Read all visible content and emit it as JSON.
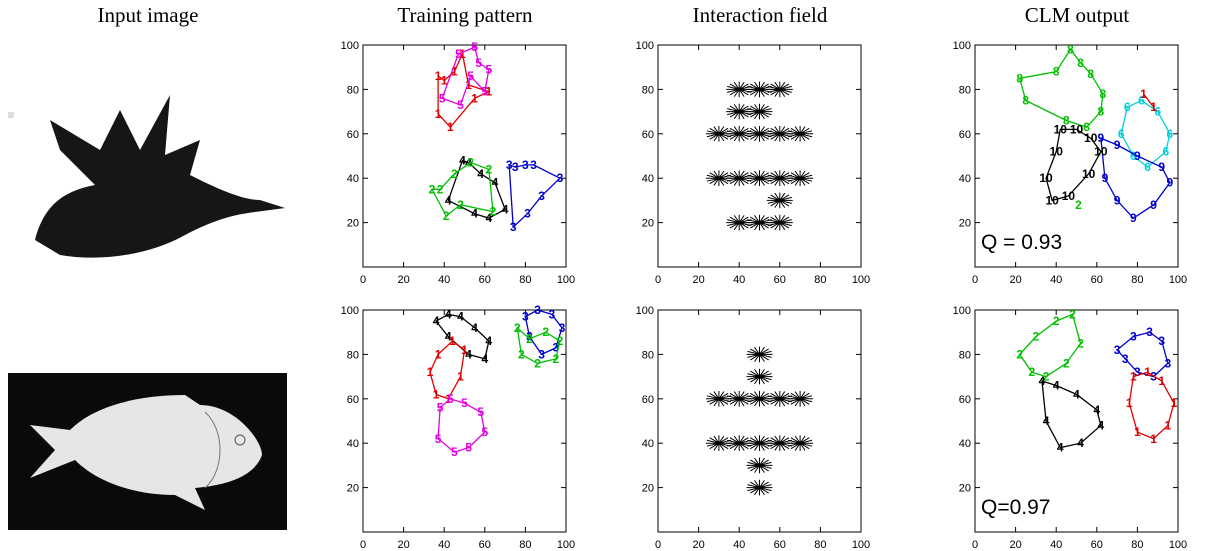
{
  "column_titles": [
    "Input image",
    "Training pattern",
    "Interaction field",
    "CLM output"
  ],
  "chart_data": [
    {
      "type": "label-scatter",
      "xlim": [
        0,
        100
      ],
      "ylim": [
        0,
        100
      ],
      "xticks": [
        0,
        20,
        40,
        60,
        80,
        100
      ],
      "yticks": [
        20,
        40,
        60,
        80,
        100
      ],
      "series": [
        {
          "name": "1",
          "color": "#e00000",
          "x": [
            37,
            40,
            45,
            49,
            52,
            62,
            55,
            43,
            37
          ],
          "y": [
            86,
            84,
            88,
            96,
            82,
            79,
            76,
            63,
            69
          ]
        },
        {
          "name": "5",
          "color": "#e000e0",
          "x": [
            47,
            55,
            57,
            62,
            60,
            53,
            48,
            39
          ],
          "y": [
            96,
            99,
            92,
            89,
            79,
            86,
            73,
            76
          ]
        },
        {
          "name": "4",
          "color": "#000000",
          "x": [
            49,
            52,
            58,
            65,
            70,
            62,
            55,
            42
          ],
          "y": [
            48,
            47,
            42,
            38,
            26,
            22,
            24,
            30
          ]
        },
        {
          "name": "2",
          "color": "#00c000",
          "x": [
            34,
            38,
            45,
            53,
            62,
            64,
            48,
            41
          ],
          "y": [
            35,
            35,
            42,
            47,
            44,
            25,
            28,
            23
          ]
        },
        {
          "name": "3",
          "color": "#0000d0",
          "x": [
            72,
            75,
            80,
            84,
            97,
            88,
            81,
            74
          ],
          "y": [
            46,
            45,
            46,
            46,
            40,
            32,
            24,
            18
          ]
        }
      ]
    },
    {
      "type": "field",
      "xlim": [
        0,
        100
      ],
      "ylim": [
        0,
        100
      ],
      "xticks": [
        0,
        20,
        40,
        60,
        80,
        100
      ],
      "yticks": [
        20,
        40,
        60,
        80,
        100
      ],
      "x": [
        40,
        50,
        60,
        30,
        70,
        40,
        50,
        60,
        30,
        70,
        40,
        50,
        60,
        40,
        50,
        60,
        40,
        50,
        60
      ],
      "y": [
        60,
        60,
        60,
        60,
        60,
        40,
        40,
        40,
        40,
        40,
        80,
        80,
        80,
        20,
        20,
        20,
        70,
        70,
        30
      ]
    },
    {
      "type": "label-scatter",
      "xlim": [
        0,
        100
      ],
      "ylim": [
        0,
        100
      ],
      "xticks": [
        0,
        20,
        40,
        60,
        80,
        100
      ],
      "yticks": [
        20,
        40,
        60,
        80,
        100
      ],
      "annotation": "Q = 0.93",
      "series": [
        {
          "name": "8",
          "color": "#00c000",
          "x": [
            47,
            52,
            57,
            63,
            62,
            55,
            45,
            25,
            22,
            40
          ],
          "y": [
            98,
            92,
            87,
            78,
            70,
            63,
            66,
            75,
            85,
            88
          ]
        },
        {
          "name": "6",
          "color": "#00d0e0",
          "x": [
            75,
            82,
            90,
            96,
            94,
            85,
            78,
            72
          ],
          "y": [
            72,
            75,
            70,
            60,
            52,
            45,
            50,
            60
          ]
        },
        {
          "name": "9",
          "color": "#0000d0",
          "x": [
            62,
            70,
            80,
            92,
            96,
            88,
            78,
            70,
            64
          ],
          "y": [
            58,
            55,
            50,
            45,
            38,
            28,
            22,
            30,
            40
          ]
        },
        {
          "name": "10",
          "color": "#000000",
          "x": [
            42,
            50,
            57,
            62,
            56,
            46,
            38,
            35,
            40
          ],
          "y": [
            62,
            62,
            58,
            52,
            42,
            32,
            30,
            40,
            52
          ]
        },
        {
          "name": "1",
          "color": "#e00000",
          "x": [
            83,
            88
          ],
          "y": [
            78,
            72
          ]
        },
        {
          "name": "2",
          "color": "#00c000",
          "x": [
            51
          ],
          "y": [
            28
          ]
        }
      ]
    },
    {
      "type": "label-scatter",
      "xlim": [
        0,
        100
      ],
      "ylim": [
        0,
        100
      ],
      "xticks": [
        0,
        20,
        40,
        60,
        80,
        100
      ],
      "yticks": [
        20,
        40,
        60,
        80,
        100
      ],
      "series": [
        {
          "name": "4",
          "color": "#000000",
          "x": [
            36,
            42,
            48,
            55,
            62,
            60,
            52,
            42
          ],
          "y": [
            95,
            98,
            97,
            92,
            86,
            78,
            80,
            88
          ]
        },
        {
          "name": "1",
          "color": "#e00000",
          "x": [
            33,
            37,
            44,
            50,
            48,
            42,
            36
          ],
          "y": [
            72,
            80,
            86,
            82,
            70,
            60,
            62
          ]
        },
        {
          "name": "5",
          "color": "#e000e0",
          "x": [
            38,
            43,
            50,
            58,
            60,
            52,
            45,
            37
          ],
          "y": [
            56,
            60,
            58,
            54,
            45,
            38,
            36,
            42
          ]
        },
        {
          "name": "3",
          "color": "#0000d0",
          "x": [
            80,
            86,
            93,
            98,
            95,
            88,
            82
          ],
          "y": [
            97,
            100,
            98,
            92,
            83,
            80,
            88
          ]
        },
        {
          "name": "2",
          "color": "#00c000",
          "x": [
            76,
            82,
            90,
            97,
            95,
            86,
            78
          ],
          "y": [
            92,
            87,
            90,
            86,
            78,
            76,
            80
          ]
        }
      ]
    },
    {
      "type": "field",
      "xlim": [
        0,
        100
      ],
      "ylim": [
        0,
        100
      ],
      "xticks": [
        0,
        20,
        40,
        60,
        80,
        100
      ],
      "yticks": [
        20,
        40,
        60,
        80,
        100
      ],
      "x": [
        40,
        50,
        60,
        30,
        70,
        40,
        50,
        60,
        30,
        70,
        50,
        50,
        50,
        50
      ],
      "y": [
        60,
        60,
        60,
        60,
        60,
        40,
        40,
        40,
        40,
        40,
        80,
        70,
        30,
        20
      ]
    },
    {
      "type": "label-scatter",
      "xlim": [
        0,
        100
      ],
      "ylim": [
        0,
        100
      ],
      "xticks": [
        0,
        20,
        40,
        60,
        80,
        100
      ],
      "yticks": [
        20,
        40,
        60,
        80,
        100
      ],
      "annotation": "Q=0.97",
      "series": [
        {
          "name": "2",
          "color": "#00c000",
          "x": [
            22,
            30,
            40,
            48,
            52,
            45,
            35,
            28
          ],
          "y": [
            80,
            88,
            95,
            98,
            85,
            76,
            70,
            72
          ]
        },
        {
          "name": "4",
          "color": "#000000",
          "x": [
            33,
            40,
            50,
            60,
            62,
            52,
            42,
            35
          ],
          "y": [
            68,
            66,
            62,
            55,
            48,
            40,
            38,
            50
          ]
        },
        {
          "name": "3",
          "color": "#0000d0",
          "x": [
            70,
            78,
            86,
            92,
            95,
            88,
            80,
            74
          ],
          "y": [
            82,
            88,
            90,
            86,
            76,
            70,
            72,
            78
          ]
        },
        {
          "name": "1",
          "color": "#e00000",
          "x": [
            78,
            85,
            92,
            98,
            95,
            88,
            80,
            76
          ],
          "y": [
            70,
            72,
            68,
            58,
            48,
            42,
            45,
            58
          ]
        }
      ]
    }
  ]
}
